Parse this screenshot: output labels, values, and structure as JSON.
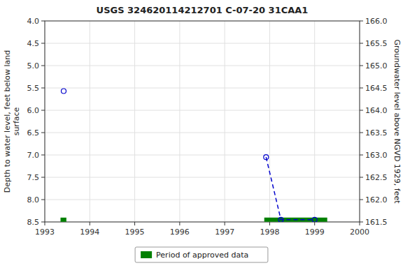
{
  "chart_data": {
    "type": "line",
    "title": "USGS 324620114212701 C-07-20 31CAA1",
    "y_label": "Depth to water level, feet below land\n surface",
    "y2_label": "Groundwater level above NGVD 1929, feet",
    "xlim": [
      1993.0,
      2000.0
    ],
    "xticks": [
      1993,
      1994,
      1995,
      1996,
      1997,
      1998,
      1999,
      2000
    ],
    "ylim": [
      8.5,
      4.0
    ],
    "yticks": [
      {
        "value": 4.0,
        "label": "4.0"
      },
      4.5,
      {
        "value": 5.0,
        "label": "5.0"
      },
      5.5,
      {
        "value": 6.0,
        "label": "6.0"
      },
      6.5,
      {
        "value": 7.0,
        "label": "7.0"
      },
      7.5,
      {
        "value": 8.0,
        "label": "8.0"
      },
      8.5
    ],
    "y2lim": [
      161.5,
      166.0
    ],
    "y2ticks": [
      161.5,
      {
        "value": 162.0,
        "label": "162.0"
      },
      162.5,
      {
        "value": 163.0,
        "label": "163.0"
      },
      163.5,
      {
        "value": 164.0,
        "label": "164.0"
      },
      164.5,
      {
        "value": 165.0,
        "label": "165.0"
      },
      165.5,
      {
        "value": 166.0,
        "label": "166.0"
      }
    ],
    "grid": true,
    "legend": "bottom",
    "series": [
      {
        "type": "line",
        "line_style": "dashed",
        "color": "#0000cc",
        "x": [
          1997.92,
          1998.25,
          1998.75,
          1999.0
        ],
        "values": [
          7.05,
          8.45,
          8.45,
          8.45
        ]
      },
      {
        "type": "scatter",
        "marker": "circle",
        "color": "#0000cc",
        "x": [
          1993.42,
          1997.92,
          1998.25,
          1999.0
        ],
        "values": [
          5.57,
          7.05,
          8.45,
          8.45
        ]
      },
      {
        "name": "Period of approved data",
        "type": "segment",
        "color": "#008000",
        "x_start": [
          1993.35,
          1997.88
        ],
        "x_end": [
          1993.48,
          1999.28
        ],
        "values": [
          8.45,
          8.45
        ]
      }
    ]
  }
}
